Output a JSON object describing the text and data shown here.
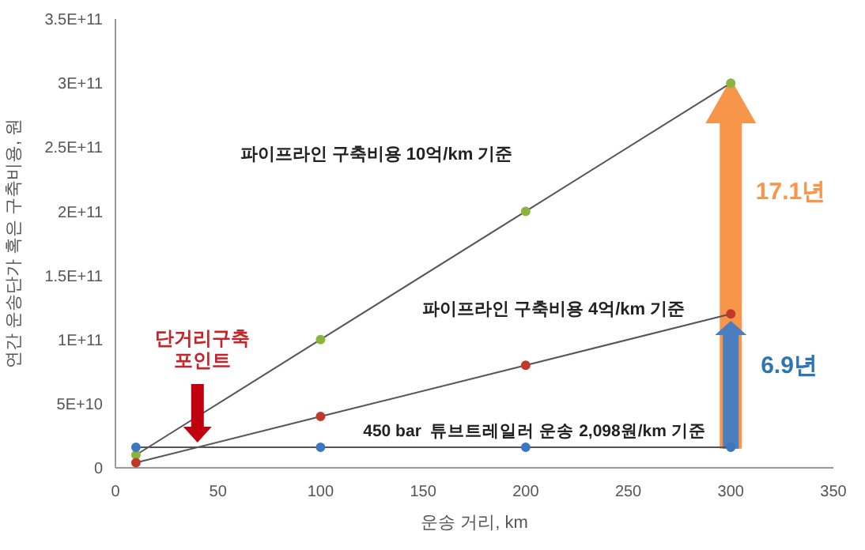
{
  "chart_data": {
    "type": "line",
    "xlabel": "운송 거리, km",
    "ylabel": "연간 운송단가 혹은 구축비용, 원",
    "x": [
      10,
      100,
      200,
      300
    ],
    "series": [
      {
        "color": "#8cb43c",
        "values": [
          10000000000.0,
          100000000000.0,
          200000000000.0,
          300000000000.0
        ]
      },
      {
        "color": "#c0392b",
        "values": [
          4000000000.0,
          40000000000.0,
          80000000000.0,
          120000000000.0
        ]
      },
      {
        "color": "#3a78c0",
        "values": [
          16000000000.0,
          16000000000.0,
          16000000000.0,
          16000000000.0
        ]
      }
    ],
    "xlim": [
      0,
      350
    ],
    "xticks": [
      0,
      50,
      100,
      150,
      200,
      250,
      300,
      350
    ],
    "ylim": [
      0,
      350000000000.0
    ],
    "yticks": [
      {
        "value": 0,
        "label": "0"
      },
      {
        "value": 50000000000.0,
        "label": "5E+10"
      },
      {
        "value": 100000000000.0,
        "label": "1E+11"
      },
      {
        "value": 150000000000.0,
        "label": "1.5E+11"
      },
      {
        "value": 200000000000.0,
        "label": "2E+11"
      },
      {
        "value": 250000000000.0,
        "label": "2.5E+11"
      },
      {
        "value": 300000000000.0,
        "label": "3E+11"
      },
      {
        "value": 350000000000.0,
        "label": "3.5E+11"
      }
    ],
    "marker": "circle",
    "annotations": [
      "파이프라인 구축비용 10억/km 기준",
      "파이프라인 구축비용 4억/km 기준",
      "450 bar  튜브트레일러 운송 2,098원/km 기준",
      "단거리구축\n포인트",
      "17.1년",
      "6.9년"
    ]
  }
}
